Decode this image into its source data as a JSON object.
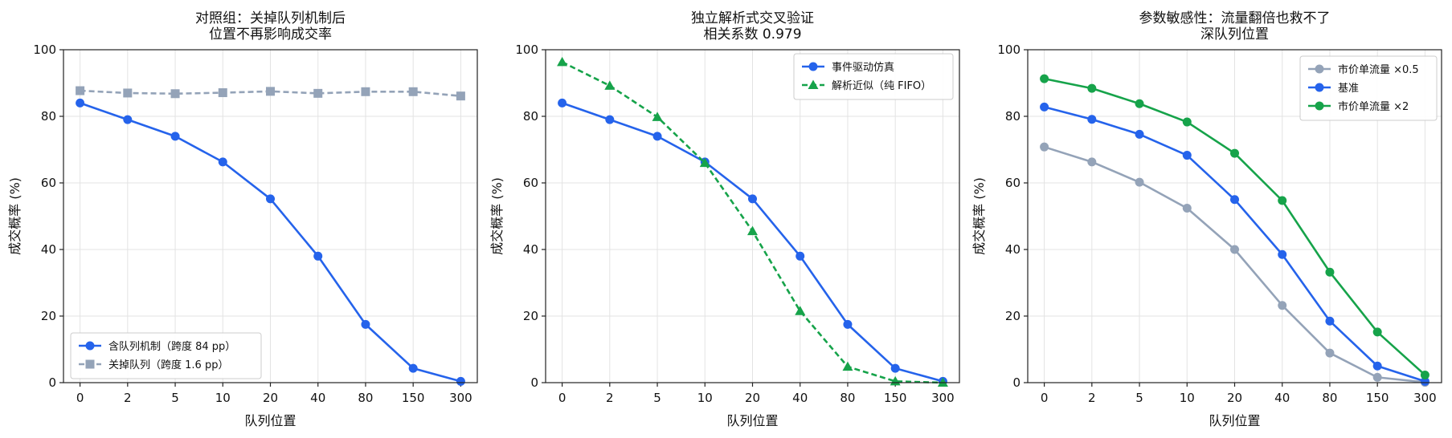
{
  "chart_data": [
    {
      "type": "line",
      "title_lines": [
        "对照组：关掉队列机制后",
        "位置不再影响成交率"
      ],
      "xlabel": "队列位置",
      "ylabel": "成交概率 (%)",
      "categories": [
        "0",
        "2",
        "5",
        "10",
        "20",
        "40",
        "80",
        "150",
        "300"
      ],
      "ylim": [
        0,
        100
      ],
      "yticks": [
        "0",
        "20",
        "40",
        "60",
        "80",
        "100"
      ],
      "grid": true,
      "legend_position": "lower-left",
      "series": [
        {
          "name": "含队列机制（跨度 84 pp）",
          "color": "#2563eb",
          "marker": "circle",
          "dash": "solid",
          "values": [
            84,
            79,
            74,
            66.3,
            55.2,
            38,
            17.5,
            4.3,
            0.4
          ]
        },
        {
          "name": "关掉队列（跨度 1.6 pp）",
          "color": "#94a3b8",
          "marker": "square",
          "dash": "dashed",
          "values": [
            87.7,
            87,
            86.8,
            87.1,
            87.5,
            86.9,
            87.4,
            87.4,
            86.1
          ]
        }
      ]
    },
    {
      "type": "line",
      "title_lines": [
        "独立解析式交叉验证",
        "相关系数 0.979"
      ],
      "xlabel": "队列位置",
      "ylabel": "成交概率 (%)",
      "categories": [
        "0",
        "2",
        "5",
        "10",
        "20",
        "40",
        "80",
        "150",
        "300"
      ],
      "ylim": [
        0,
        100
      ],
      "yticks": [
        "0",
        "20",
        "40",
        "60",
        "80",
        "100"
      ],
      "grid": true,
      "legend_position": "upper-right",
      "series": [
        {
          "name": "事件驱动仿真",
          "color": "#2563eb",
          "marker": "circle",
          "dash": "solid",
          "values": [
            84,
            79,
            74,
            66.3,
            55.2,
            38,
            17.5,
            4.3,
            0.4
          ]
        },
        {
          "name": "解析近似（纯 FIFO）",
          "color": "#16a34a",
          "marker": "triangle",
          "dash": "dashed",
          "values": [
            96.3,
            89.2,
            79.8,
            66,
            45.5,
            21.5,
            4.8,
            0.4,
            0
          ]
        }
      ]
    },
    {
      "type": "line",
      "title_lines": [
        "参数敏感性：流量翻倍也救不了",
        "深队列位置"
      ],
      "xlabel": "队列位置",
      "ylabel": "成交概率 (%)",
      "categories": [
        "0",
        "2",
        "5",
        "10",
        "20",
        "40",
        "80",
        "150",
        "300"
      ],
      "ylim": [
        0,
        100
      ],
      "yticks": [
        "0",
        "20",
        "40",
        "60",
        "80",
        "100"
      ],
      "grid": true,
      "legend_position": "upper-right",
      "series": [
        {
          "name": "市价单流量 ×0.5",
          "color": "#94a3b8",
          "marker": "circle",
          "dash": "solid",
          "values": [
            70.8,
            66.3,
            60.2,
            52.4,
            40,
            23.2,
            8.9,
            1.6,
            0.1
          ]
        },
        {
          "name": "基准",
          "color": "#2563eb",
          "marker": "circle",
          "dash": "solid",
          "values": [
            82.8,
            79.1,
            74.6,
            68.3,
            55,
            38.5,
            18.5,
            5,
            0.4
          ]
        },
        {
          "name": "市价单流量 ×2",
          "color": "#16a34a",
          "marker": "circle",
          "dash": "solid",
          "values": [
            91.3,
            88.4,
            83.8,
            78.3,
            68.9,
            54.7,
            33.2,
            15.2,
            2.3
          ]
        }
      ]
    }
  ]
}
